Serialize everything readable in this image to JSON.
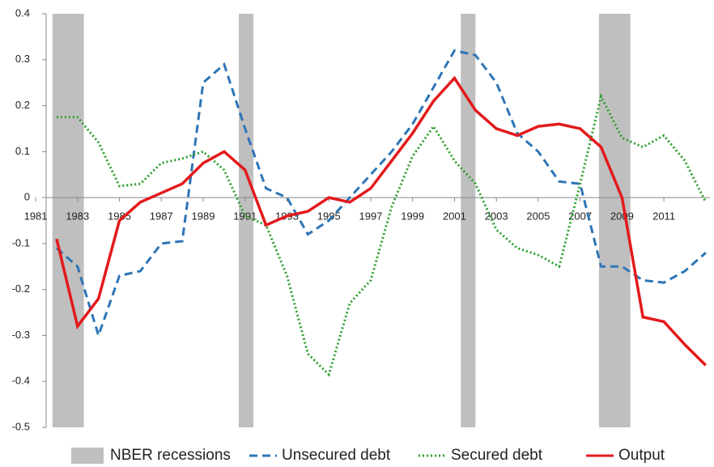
{
  "chart_data": {
    "type": "line",
    "x": [
      1982,
      1983,
      1984,
      1985,
      1986,
      1987,
      1988,
      1989,
      1990,
      1991,
      1992,
      1993,
      1994,
      1995,
      1996,
      1997,
      1998,
      1999,
      2000,
      2001,
      2002,
      2003,
      2004,
      2005,
      2006,
      2007,
      2008,
      2009,
      2010,
      2011,
      2012,
      2013
    ],
    "xlim": [
      1981.5,
      2013.2
    ],
    "xticks": [
      1981,
      1983,
      1985,
      1987,
      1989,
      1991,
      1993,
      1995,
      1997,
      1999,
      2001,
      2003,
      2005,
      2007,
      2009,
      2011
    ],
    "ylim": [
      -0.5,
      0.4
    ],
    "yticks": [
      -0.5,
      -0.4,
      -0.3,
      -0.2,
      -0.1,
      0,
      0.1,
      0.2,
      0.3,
      0.4
    ],
    "recessions": {
      "name": "NBER recessions",
      "color": "#c0bfbf",
      "spans": [
        [
          1981.8,
          1983.3
        ],
        [
          1990.7,
          1991.4
        ],
        [
          2001.3,
          2002.0
        ],
        [
          2007.9,
          2009.4
        ]
      ]
    },
    "series": [
      {
        "name": "Unsecured debt",
        "color": "#2e75b6",
        "style": "dashed",
        "values": [
          -0.11,
          -0.15,
          -0.3,
          -0.17,
          -0.16,
          -0.1,
          -0.095,
          0.25,
          0.29,
          0.15,
          0.02,
          0.0,
          -0.08,
          -0.05,
          0.0,
          0.05,
          0.1,
          0.16,
          0.24,
          0.32,
          0.31,
          0.25,
          0.14,
          0.1,
          0.035,
          0.03,
          -0.15,
          -0.15,
          -0.18,
          -0.185,
          -0.16,
          -0.12
        ]
      },
      {
        "name": "Secured debt",
        "color": "#2ca02c",
        "style": "dotted",
        "values": [
          0.175,
          0.175,
          0.12,
          0.025,
          0.03,
          0.075,
          0.085,
          0.1,
          0.06,
          -0.04,
          -0.06,
          -0.17,
          -0.34,
          -0.385,
          -0.23,
          -0.18,
          -0.02,
          0.09,
          0.155,
          0.08,
          0.03,
          -0.07,
          -0.11,
          -0.125,
          -0.15,
          0.03,
          0.22,
          0.13,
          0.11,
          0.135,
          0.08,
          -0.01
        ]
      },
      {
        "name": "Output",
        "color": "#e31a1c",
        "style": "solid",
        "values": [
          -0.09,
          -0.28,
          -0.22,
          -0.05,
          -0.01,
          0.01,
          0.03,
          0.075,
          0.1,
          0.06,
          -0.06,
          -0.04,
          -0.03,
          0.0,
          -0.01,
          0.02,
          0.08,
          0.14,
          0.21,
          0.26,
          0.19,
          0.15,
          0.135,
          0.155,
          0.16,
          0.15,
          0.11,
          0.0,
          -0.26,
          -0.27,
          -0.32,
          -0.365
        ]
      }
    ]
  }
}
